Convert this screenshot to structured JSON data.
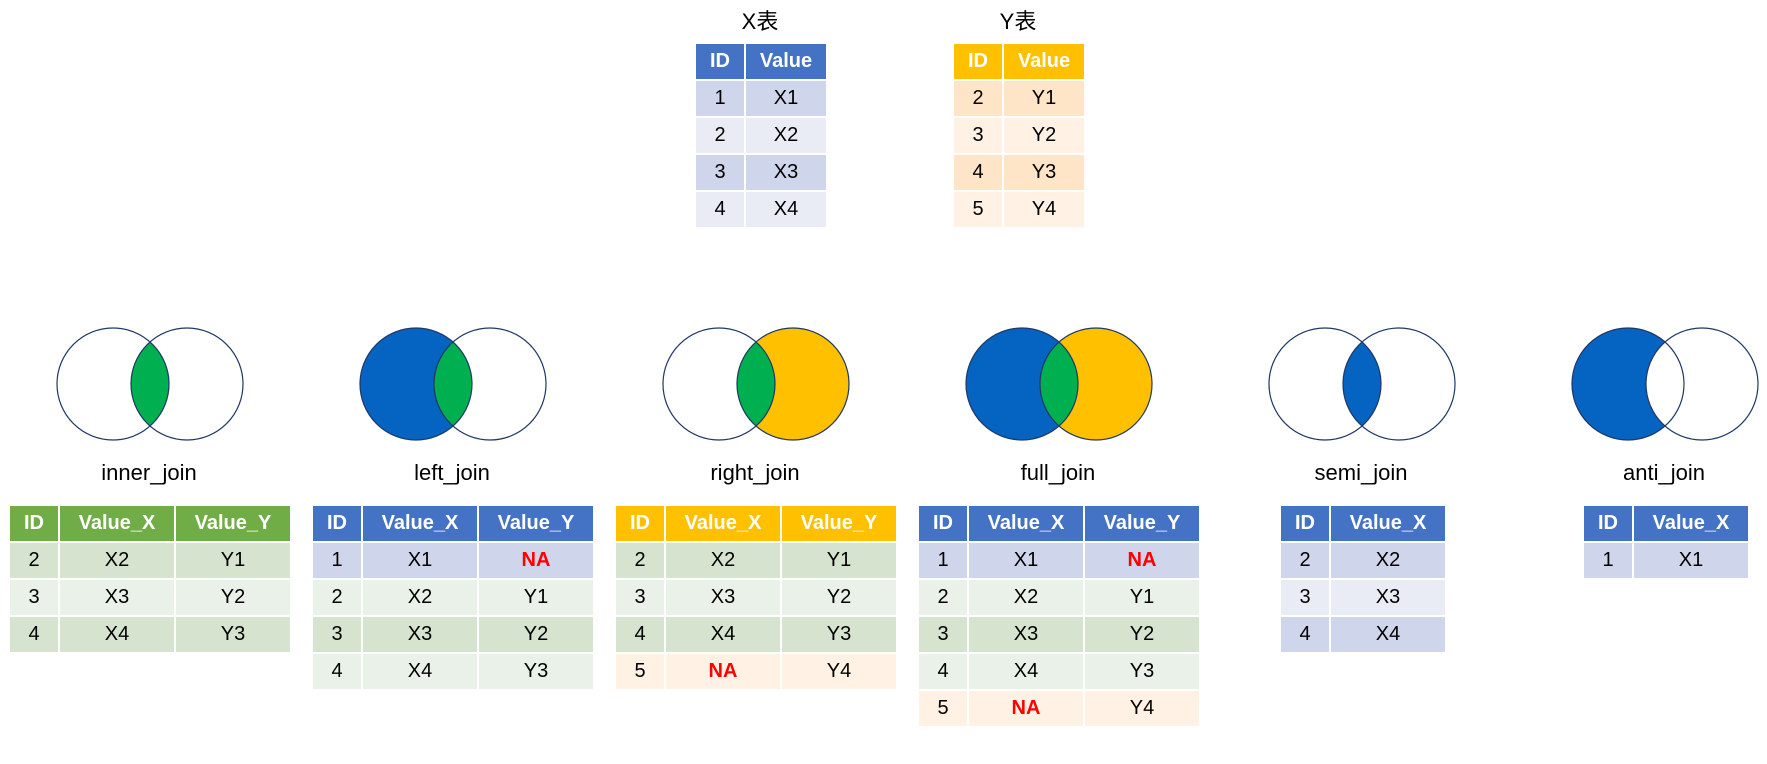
{
  "colors": {
    "x_blue": "#0563c1",
    "y_gold": "#ffc000",
    "overlap_green": "#00b050",
    "header_blue": "#4472c4",
    "header_gold": "#ffc000",
    "header_green": "#70ad47",
    "na_red": "#ff0000"
  },
  "x_table": {
    "title": "X表",
    "headers": [
      "ID",
      "Value"
    ],
    "rows": [
      [
        "1",
        "X1"
      ],
      [
        "2",
        "X2"
      ],
      [
        "3",
        "X3"
      ],
      [
        "4",
        "X4"
      ]
    ]
  },
  "y_table": {
    "title": "Y表",
    "headers": [
      "ID",
      "Value"
    ],
    "rows": [
      [
        "2",
        "Y1"
      ],
      [
        "3",
        "Y2"
      ],
      [
        "4",
        "Y3"
      ],
      [
        "5",
        "Y4"
      ]
    ]
  },
  "joins": [
    {
      "name": "inner_join",
      "headers": [
        "ID",
        "Value_X",
        "Value_Y"
      ],
      "rows": [
        [
          "2",
          "X2",
          "Y1"
        ],
        [
          "3",
          "X3",
          "Y2"
        ],
        [
          "4",
          "X4",
          "Y3"
        ]
      ]
    },
    {
      "name": "left_join",
      "headers": [
        "ID",
        "Value_X",
        "Value_Y"
      ],
      "rows": [
        [
          "1",
          "X1",
          "NA"
        ],
        [
          "2",
          "X2",
          "Y1"
        ],
        [
          "3",
          "X3",
          "Y2"
        ],
        [
          "4",
          "X4",
          "Y3"
        ]
      ]
    },
    {
      "name": "right_join",
      "headers": [
        "ID",
        "Value_X",
        "Value_Y"
      ],
      "rows": [
        [
          "2",
          "X2",
          "Y1"
        ],
        [
          "3",
          "X3",
          "Y2"
        ],
        [
          "4",
          "X4",
          "Y3"
        ],
        [
          "5",
          "NA",
          "Y4"
        ]
      ]
    },
    {
      "name": "full_join",
      "headers": [
        "ID",
        "Value_X",
        "Value_Y"
      ],
      "rows": [
        [
          "1",
          "X1",
          "NA"
        ],
        [
          "2",
          "X2",
          "Y1"
        ],
        [
          "3",
          "X3",
          "Y2"
        ],
        [
          "4",
          "X4",
          "Y3"
        ],
        [
          "5",
          "NA",
          "Y4"
        ]
      ]
    },
    {
      "name": "semi_join",
      "headers": [
        "ID",
        "Value_X"
      ],
      "rows": [
        [
          "2",
          "X2"
        ],
        [
          "3",
          "X3"
        ],
        [
          "4",
          "X4"
        ]
      ]
    },
    {
      "name": "anti_join",
      "headers": [
        "ID",
        "Value_X"
      ],
      "rows": [
        [
          "1",
          "X1"
        ]
      ]
    }
  ]
}
